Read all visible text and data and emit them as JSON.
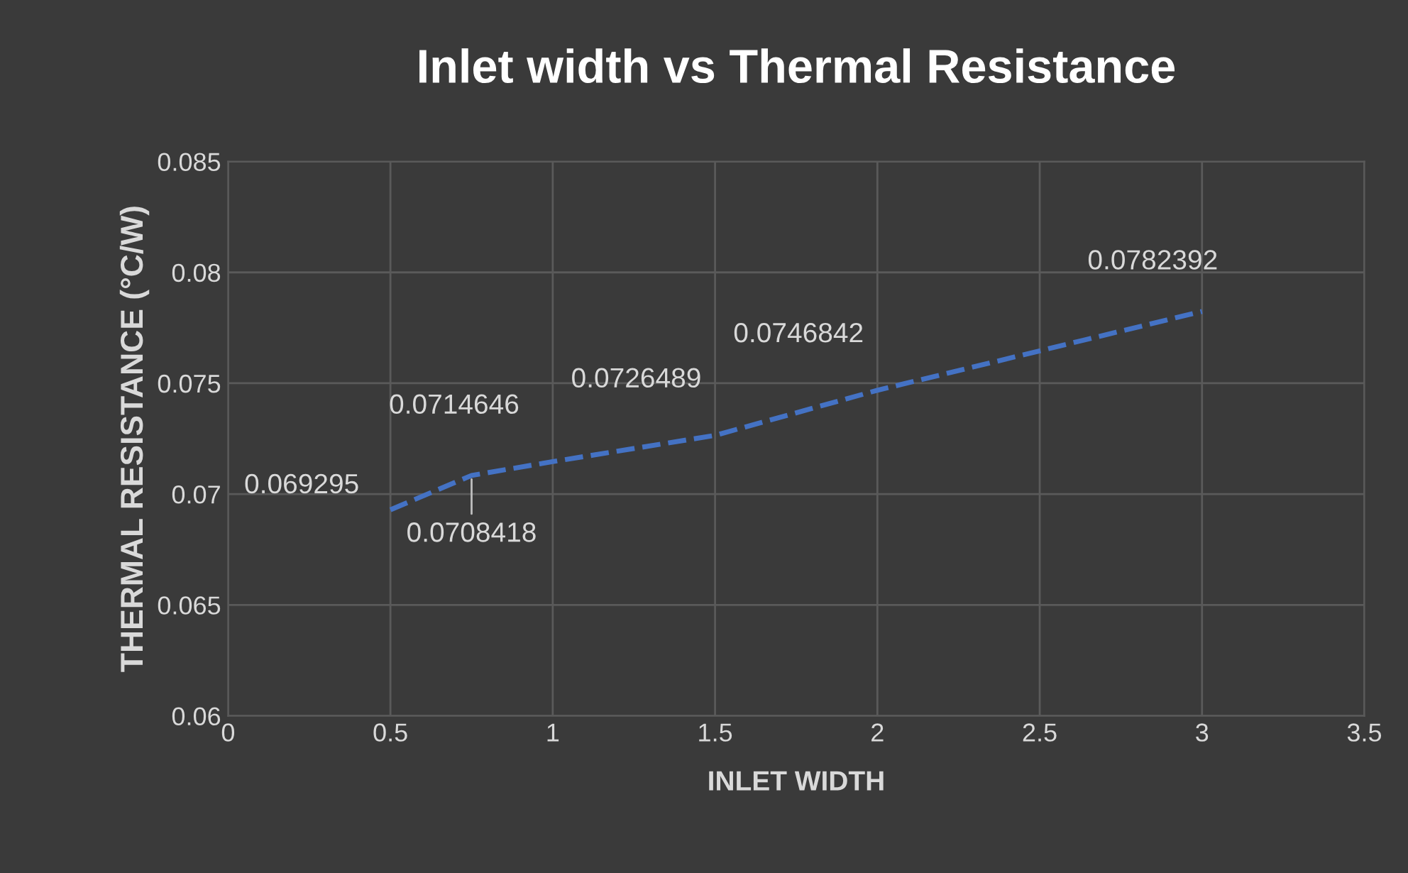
{
  "chart_data": {
    "type": "line",
    "title": "Inlet width vs Thermal Resistance",
    "xlabel": "INLET WIDTH",
    "ylabel": "THERMAL RESISTANCE (°C/W)",
    "x": [
      0.5,
      0.75,
      1,
      1.5,
      2,
      3
    ],
    "series": [
      {
        "color": "#4472c4",
        "values": [
          0.069295,
          0.0708418,
          0.0714646,
          0.0726489,
          0.0746842,
          0.0782392
        ]
      }
    ],
    "xlim": [
      0,
      3.5
    ],
    "xticks": [
      0,
      0.5,
      1,
      1.5,
      2,
      2.5,
      3,
      3.5
    ],
    "ylim": [
      0.06,
      0.085
    ],
    "yticks": [
      0.06,
      0.065,
      0.07,
      0.075,
      0.08,
      0.085
    ],
    "grid": true,
    "data_labels": true,
    "line_style": "dashed",
    "marker": "none"
  }
}
